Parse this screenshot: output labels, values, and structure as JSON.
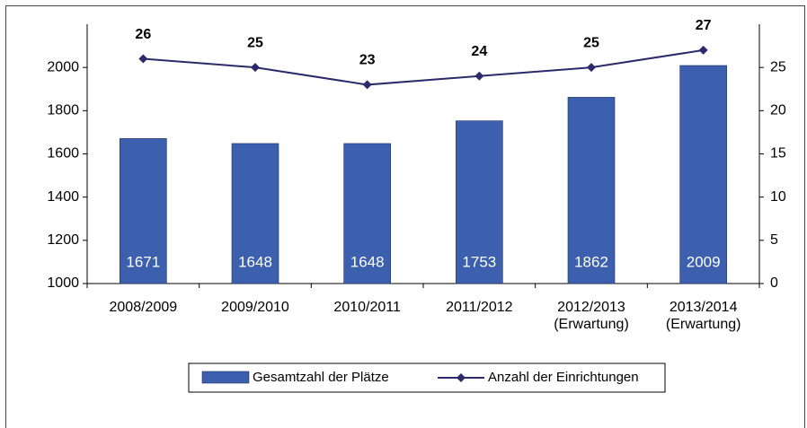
{
  "chart_data": {
    "type": "bar",
    "categories": [
      "2008/2009",
      "2009/2010",
      "2010/2011",
      "2011/2012",
      "2012/2013\n(Erwartung)",
      "2013/2014\n(Erwartung)"
    ],
    "series": [
      {
        "name": "Gesamtzahl der Plätze",
        "type": "bar",
        "color": "#3c5fae",
        "values": [
          1671,
          1648,
          1648,
          1753,
          1862,
          2009
        ]
      },
      {
        "name": "Anzahl der Einrichtungen",
        "type": "line",
        "axis": "y2",
        "color": "#2b2a6b",
        "values": [
          26,
          25,
          23,
          24,
          25,
          27
        ]
      }
    ],
    "ylim": [
      1000,
      2200
    ],
    "yticks": [
      1000,
      1200,
      1400,
      1600,
      1800,
      2000
    ],
    "y2lim": [
      0,
      30
    ],
    "y2ticks": [
      0,
      5,
      10,
      15,
      20,
      25
    ],
    "legend": "bottom"
  }
}
